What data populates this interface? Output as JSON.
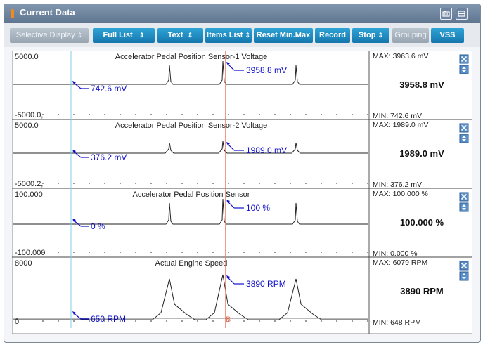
{
  "window": {
    "title": "Current Data"
  },
  "icons": {
    "title_grip": "orange-grip-icon",
    "screenshot": "camera-icon",
    "minimize": "minimize-icon",
    "close": "close-x-icon",
    "expand": "expand-updown-icon"
  },
  "colors": {
    "accent": "#1e8fc8",
    "annotation": "#1010cc",
    "cursor_red": "#e8705a",
    "cursor_cyan": "#7fd0e6"
  },
  "toolbar": {
    "selective_display": "Selective Display",
    "full_list": "Full List",
    "text": "Text",
    "items_list": "Items List",
    "reset_min_max": "Reset Min.Max",
    "record": "Record",
    "stop": "Stop",
    "grouping": "Grouping",
    "vss": "VSS"
  },
  "cursor_label": "B",
  "panels": [
    {
      "name": "Accelerator Pedal Position Sensor-1 Voltage",
      "top_label": "5000.0",
      "bottom_label": "-5000.0,",
      "max": "MAX: 3963.6 mV",
      "min": "MIN: 742.6 mV",
      "current": "3958.8 mV",
      "ann_peak": "3958.8 mV",
      "ann_base": "742.6 mV"
    },
    {
      "name": "Accelerator Pedal Position Sensor-2 Voltage",
      "top_label": "5000.0",
      "bottom_label": "-5000.2,",
      "max": "MAX: 1989.0 mV",
      "min": "MIN: 376.2 mV",
      "current": "1989.0 mV",
      "ann_peak": "1989.0 mV",
      "ann_base": "376.2 mV"
    },
    {
      "name": "Accelerator Pedal Position Sensor",
      "top_label": "100.000",
      "bottom_label": "-100.000",
      "max": "MAX: 100.000 %",
      "min": "MIN: 0.000 %",
      "current": "100.000 %",
      "ann_peak": "100 %",
      "ann_base": "0 %"
    },
    {
      "name": "Actual Engine Speed",
      "top_label": "8000",
      "bottom_label": "0",
      "max": "MAX:   6079 RPM",
      "min": "MIN:    648 RPM",
      "current": "3890 RPM",
      "ann_peak": "3890 RPM",
      "ann_base": "650 RPM"
    }
  ]
}
